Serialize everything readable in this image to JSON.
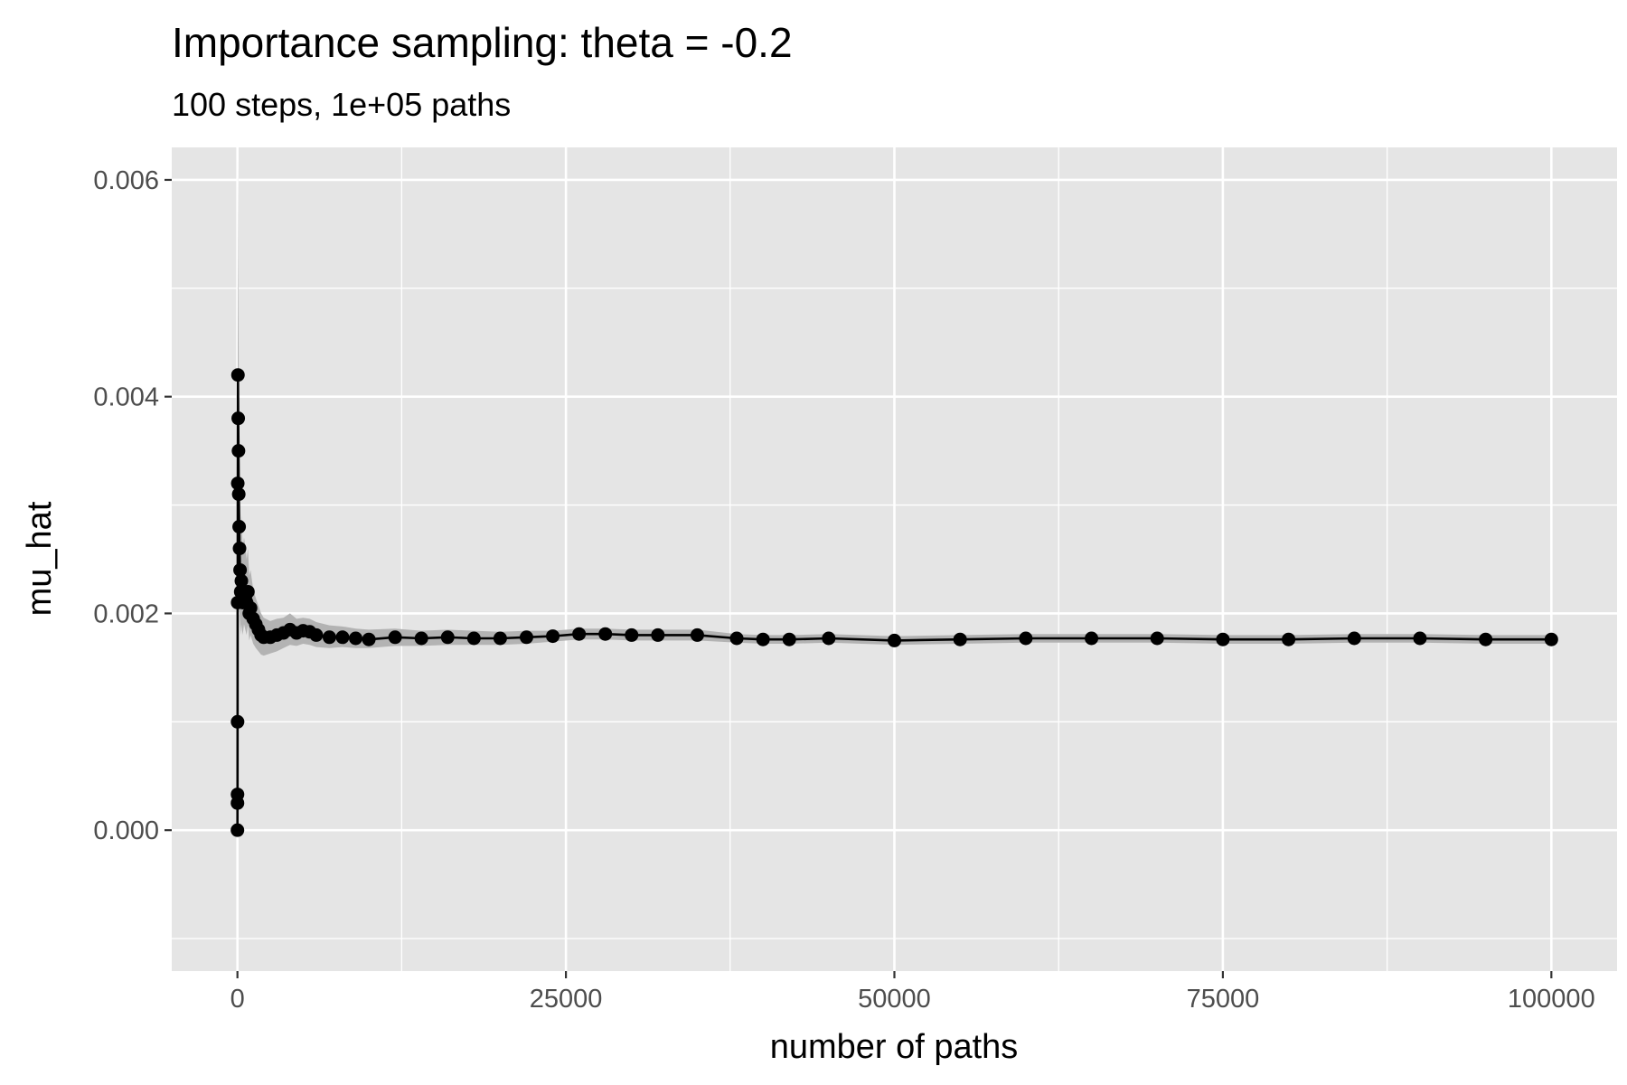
{
  "chart_data": {
    "type": "line",
    "title": "Importance sampling: theta =  -0.2",
    "subtitle": "100 steps, 1e+05 paths",
    "xlabel": "number of paths",
    "ylabel": "mu_hat",
    "xlim": [
      -5000,
      105000
    ],
    "ylim": [
      -0.0013,
      0.0063
    ],
    "x_ticks": [
      0,
      25000,
      50000,
      75000,
      100000
    ],
    "x_tick_labels": [
      "0",
      "25000",
      "50000",
      "75000",
      "100000"
    ],
    "y_ticks": [
      0.0,
      0.002,
      0.004,
      0.006
    ],
    "y_tick_labels": [
      "0.000",
      "0.002",
      "0.004",
      "0.006"
    ],
    "grid": true,
    "legend": "none",
    "colors": {
      "panel": "#e5e5e5",
      "grid": "#ffffff",
      "line": "#000000",
      "ribbon": "#b3b3b3"
    },
    "series": [
      {
        "x": [
          1,
          3,
          6,
          10,
          15,
          25,
          40,
          60,
          80,
          100,
          130,
          160,
          200,
          250,
          300,
          400,
          500,
          600,
          700,
          800,
          900,
          1000,
          1200,
          1400,
          1600,
          1800,
          2000,
          2500,
          3000,
          3500,
          4000,
          4500,
          5000,
          5500,
          6000,
          7000,
          8000,
          9000,
          10000,
          12000,
          14000,
          16000,
          18000,
          20000,
          22000,
          24000,
          26000,
          28000,
          30000,
          32000,
          35000,
          38000,
          40000,
          42000,
          45000,
          50000,
          55000,
          60000,
          65000,
          70000,
          75000,
          80000,
          85000,
          90000,
          95000,
          100000
        ],
        "mu_hat": [
          0.0,
          0.00025,
          0.00033,
          0.001,
          0.0021,
          0.0032,
          0.0042,
          0.0038,
          0.0035,
          0.0031,
          0.0028,
          0.0026,
          0.0024,
          0.0022,
          0.0023,
          0.0021,
          0.0022,
          0.00215,
          0.0021,
          0.0022,
          0.002,
          0.00205,
          0.00195,
          0.0019,
          0.00185,
          0.0018,
          0.00178,
          0.00178,
          0.0018,
          0.00182,
          0.00185,
          0.00182,
          0.00184,
          0.00183,
          0.0018,
          0.00178,
          0.00178,
          0.00177,
          0.00176,
          0.00178,
          0.00177,
          0.00178,
          0.00177,
          0.00177,
          0.00178,
          0.00179,
          0.00181,
          0.00181,
          0.0018,
          0.0018,
          0.0018,
          0.00177,
          0.00176,
          0.00176,
          0.00177,
          0.00175,
          0.00176,
          0.00177,
          0.00177,
          0.00177,
          0.00176,
          0.00176,
          0.00177,
          0.00177,
          0.00176,
          0.00176
        ],
        "lower": [
          0.0,
          0.0,
          0.0,
          0.0002,
          0.0012,
          0.0018,
          0.0024,
          0.0025,
          0.0024,
          0.0022,
          0.0021,
          0.002,
          0.0019,
          0.0018,
          0.0019,
          0.0018,
          0.0019,
          0.00185,
          0.0018,
          0.0019,
          0.00175,
          0.0018,
          0.00172,
          0.00168,
          0.00165,
          0.00162,
          0.00161,
          0.00163,
          0.00165,
          0.00168,
          0.00171,
          0.0017,
          0.00172,
          0.00171,
          0.00169,
          0.00168,
          0.00169,
          0.00168,
          0.00168,
          0.0017,
          0.0017,
          0.00171,
          0.00171,
          0.00171,
          0.00172,
          0.00174,
          0.00176,
          0.00176,
          0.00175,
          0.00175,
          0.00175,
          0.00173,
          0.00172,
          0.00172,
          0.00173,
          0.00171,
          0.00172,
          0.00173,
          0.00173,
          0.00173,
          0.00172,
          0.00172,
          0.00173,
          0.00173,
          0.00172,
          0.00172
        ],
        "upper": [
          0.0,
          0.0006,
          0.0008,
          0.0019,
          0.0033,
          0.0046,
          0.0062,
          0.0053,
          0.0048,
          0.0042,
          0.0037,
          0.0034,
          0.0031,
          0.0028,
          0.0029,
          0.0026,
          0.0027,
          0.00262,
          0.0025,
          0.0026,
          0.00235,
          0.0024,
          0.00222,
          0.00214,
          0.00207,
          0.002,
          0.00196,
          0.00193,
          0.00195,
          0.00196,
          0.002,
          0.00195,
          0.00196,
          0.00195,
          0.00192,
          0.00189,
          0.00188,
          0.00186,
          0.00185,
          0.00186,
          0.00184,
          0.00185,
          0.00184,
          0.00183,
          0.00184,
          0.00184,
          0.00186,
          0.00186,
          0.00185,
          0.00185,
          0.00185,
          0.00181,
          0.0018,
          0.0018,
          0.00181,
          0.00179,
          0.0018,
          0.00181,
          0.00181,
          0.00181,
          0.0018,
          0.0018,
          0.00181,
          0.00181,
          0.0018,
          0.0018
        ]
      }
    ]
  }
}
